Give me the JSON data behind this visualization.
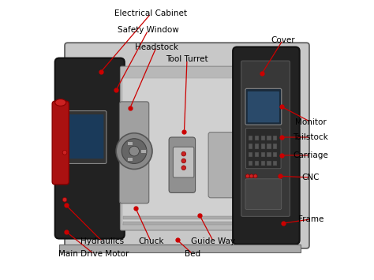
{
  "background_color": "#ffffff",
  "label_color": "#000000",
  "line_color": "#cc0000",
  "dot_color": "#cc0000",
  "label_fontsize": 7.5,
  "figsize": [
    4.74,
    3.55
  ],
  "dpi": 100,
  "annotations": [
    {
      "label": "Electrical Cabinet",
      "tpos": [
        0.37,
        0.955
      ],
      "dpos": [
        0.19,
        0.745
      ]
    },
    {
      "label": "Safety Window",
      "tpos": [
        0.36,
        0.895
      ],
      "dpos": [
        0.245,
        0.68
      ]
    },
    {
      "label": "Headstock",
      "tpos": [
        0.39,
        0.835
      ],
      "dpos": [
        0.295,
        0.615
      ]
    },
    {
      "label": "Tool Turret",
      "tpos": [
        0.5,
        0.79
      ],
      "dpos": [
        0.49,
        0.53
      ]
    },
    {
      "label": "Cover",
      "tpos": [
        0.845,
        0.86
      ],
      "dpos": [
        0.77,
        0.74
      ]
    },
    {
      "label": "Monitor",
      "tpos": [
        0.945,
        0.565
      ],
      "dpos": [
        0.84,
        0.62
      ]
    },
    {
      "label": "Tailstock",
      "tpos": [
        0.945,
        0.51
      ],
      "dpos": [
        0.84,
        0.51
      ]
    },
    {
      "label": "Carriage",
      "tpos": [
        0.945,
        0.445
      ],
      "dpos": [
        0.84,
        0.445
      ]
    },
    {
      "label": "CNC",
      "tpos": [
        0.945,
        0.365
      ],
      "dpos": [
        0.835,
        0.37
      ]
    },
    {
      "label": "Frame",
      "tpos": [
        0.945,
        0.215
      ],
      "dpos": [
        0.845,
        0.2
      ]
    },
    {
      "label": "Guide Way",
      "tpos": [
        0.595,
        0.135
      ],
      "dpos": [
        0.545,
        0.23
      ]
    },
    {
      "label": "Bed",
      "tpos": [
        0.52,
        0.09
      ],
      "dpos": [
        0.465,
        0.14
      ]
    },
    {
      "label": "Chuck",
      "tpos": [
        0.37,
        0.135
      ],
      "dpos": [
        0.315,
        0.255
      ]
    },
    {
      "label": "Hydraulics",
      "tpos": [
        0.195,
        0.135
      ],
      "dpos": [
        0.065,
        0.265
      ]
    },
    {
      "label": "Main Drive Motor",
      "tpos": [
        0.165,
        0.09
      ],
      "dpos": [
        0.065,
        0.17
      ]
    }
  ]
}
